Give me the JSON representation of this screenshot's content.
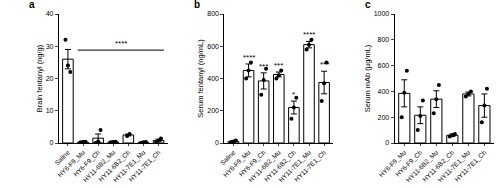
{
  "chart_data": [
    {
      "type": "bar",
      "panel": "a",
      "y_label": "Brain fentanyl (ng/g)",
      "categories": [
        "Saline",
        "HY6-F9_Mu",
        "HY6-F9_Ch",
        "HY11-6B2_Mu",
        "HY11-6B2_Ch",
        "HY11-7E1_Mu",
        "HY11-7E1_Ch"
      ],
      "values": [
        26,
        0.3,
        1.5,
        0.3,
        2.5,
        0.2,
        0.8
      ],
      "errors": [
        3,
        0.1,
        1.3,
        0.1,
        0.3,
        0.1,
        0.4
      ],
      "points": [
        [
          32,
          24,
          22
        ],
        [
          0.2,
          0.3,
          0.4
        ],
        [
          0,
          0.5,
          4
        ],
        [
          0.2,
          0.3,
          0.4
        ],
        [
          2.2,
          2.8
        ],
        [
          0.1,
          0.2,
          0.3
        ],
        [
          0.2,
          0.8,
          1.4
        ]
      ],
      "color": "#000000",
      "marker": "circle",
      "ylim": [
        0,
        40
      ],
      "yticks": [
        0,
        10,
        20,
        30,
        40
      ],
      "bracket": {
        "from": "HY6-F9_Mu",
        "to": "HY11-7E1_Ch",
        "text": "****"
      }
    },
    {
      "type": "bar",
      "panel": "b",
      "y_label": "Serum fentanyl (ng/mL)",
      "categories": [
        "Saline",
        "HY6-F9_Mu",
        "HY6-F9_Ch",
        "HY11-6B2_Mu",
        "HY11-6B2_Ch",
        "HY11-7E1_Mu",
        "HY11-7E1_Ch"
      ],
      "values": [
        10,
        450,
        385,
        425,
        220,
        610,
        375
      ],
      "errors": [
        3,
        40,
        50,
        15,
        40,
        20,
        70
      ],
      "points": [
        [
          5,
          10,
          15
        ],
        [
          400,
          450,
          500
        ],
        [
          300,
          390,
          460
        ],
        [
          400,
          420,
          450
        ],
        [
          150,
          220,
          280
        ],
        [
          580,
          610,
          640
        ],
        [
          260,
          370,
          500
        ]
      ],
      "color": "#000000",
      "marker": "circle",
      "ylim": [
        0,
        800
      ],
      "yticks": [
        0,
        200,
        400,
        600,
        800
      ],
      "annotations": [
        {
          "category": "HY6-F9_Mu",
          "text": "****"
        },
        {
          "category": "HY6-F9_Ch",
          "text": "***"
        },
        {
          "category": "HY11-6B2_Mu",
          "text": "***"
        },
        {
          "category": "HY11-6B2_Ch",
          "text": "*"
        },
        {
          "category": "HY11-7E1_Mu",
          "text": "****"
        },
        {
          "category": "HY11-7E1_Ch",
          "text": "***"
        }
      ]
    },
    {
      "type": "bar",
      "panel": "c",
      "y_label": "Serum mAb (µg/mL)",
      "categories": [
        "HY6-F9_Mu",
        "HY6-F9_Ch",
        "HY11-6B2_Mu",
        "HY11-6B2_Ch",
        "HY11-7E1_Mu",
        "HY11-7E1_Ch"
      ],
      "values": [
        385,
        215,
        340,
        60,
        380,
        290
      ],
      "errors": [
        105,
        65,
        65,
        10,
        15,
        90
      ],
      "points": [
        [
          200,
          390,
          560
        ],
        [
          100,
          210,
          330
        ],
        [
          230,
          340,
          450
        ],
        [
          50,
          60,
          70
        ],
        [
          360,
          380,
          400
        ],
        [
          160,
          290,
          420
        ]
      ],
      "color": "#000000",
      "marker": "circle",
      "ylim": [
        0,
        1000
      ],
      "yticks": [
        0,
        200,
        400,
        600,
        800,
        1000
      ]
    }
  ]
}
